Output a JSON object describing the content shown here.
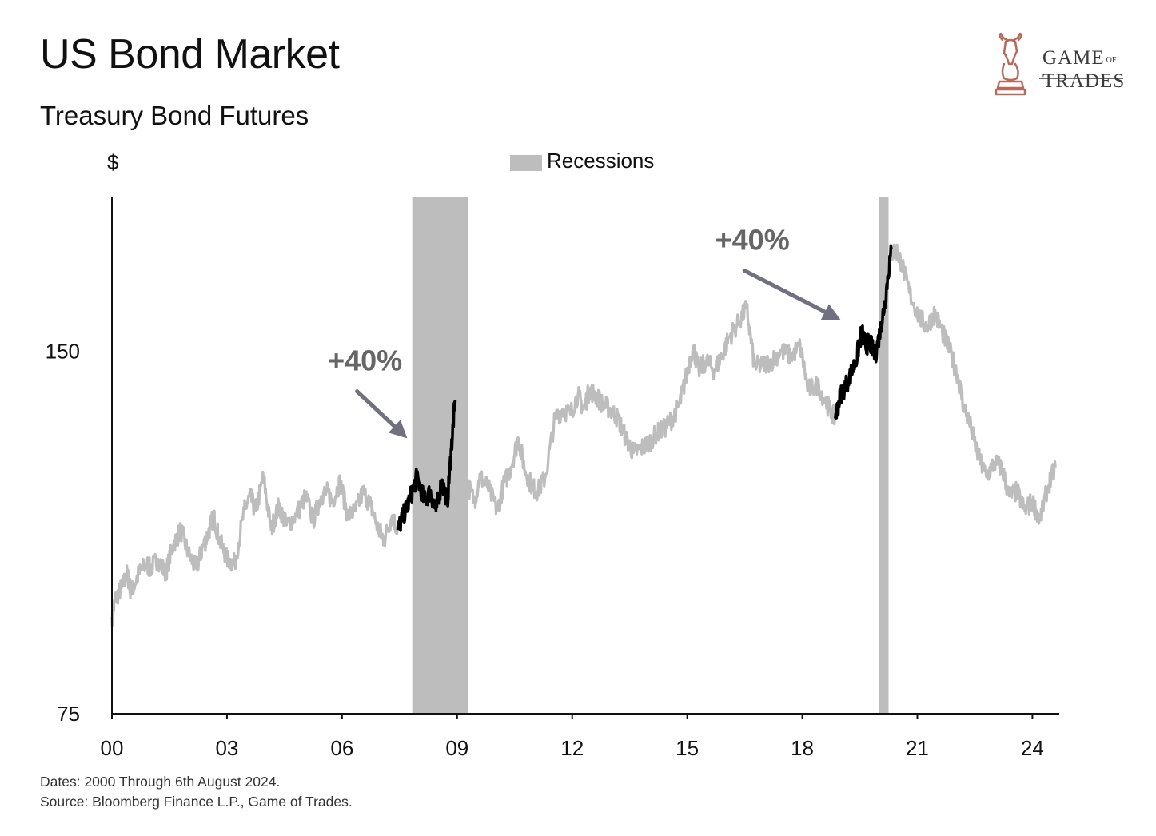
{
  "header": {
    "title": "US Bond Market",
    "subtitle": "Treasury Bond Futures"
  },
  "logo": {
    "line1": "GAME",
    "of": "OF",
    "line2": "TRADES",
    "icon": "bull-knight-chess-piece-icon"
  },
  "colors": {
    "series_normal": "#bdbdbd",
    "series_highlight": "#000000",
    "recession": "#bdbdbd",
    "annotation": "#666666",
    "logo_accent": "#b86a5a"
  },
  "footer": {
    "dates": "Dates: 2000 Through 6th August 2024.",
    "source": "Source: Bloomberg Finance L.P., Game of Trades."
  },
  "chart_data": {
    "type": "line",
    "title": "US Bond Market",
    "subtitle": "Treasury Bond Futures",
    "ylabel": "$",
    "xlim": [
      2000,
      2024.7
    ],
    "ylim": [
      75,
      182
    ],
    "yticks": [
      {
        "value": 75,
        "label": "75"
      },
      {
        "value": 150,
        "label": "150"
      }
    ],
    "xticks": [
      {
        "value": 2000,
        "label": "00"
      },
      {
        "value": 2003,
        "label": "03"
      },
      {
        "value": 2006,
        "label": "06"
      },
      {
        "value": 2009,
        "label": "09"
      },
      {
        "value": 2012,
        "label": "12"
      },
      {
        "value": 2015,
        "label": "15"
      },
      {
        "value": 2018,
        "label": "18"
      },
      {
        "value": 2021,
        "label": "21"
      },
      {
        "value": 2024,
        "label": "24"
      }
    ],
    "grid": false,
    "legend": {
      "placement": "top-center",
      "entries": [
        {
          "label": "Recessions"
        }
      ]
    },
    "recessions": [
      {
        "start": 2007.83,
        "end": 2009.29
      },
      {
        "start": 2020.0,
        "end": 2020.25
      }
    ],
    "highlights": [
      {
        "start": 2007.45,
        "end": 2008.95
      },
      {
        "start": 2018.85,
        "end": 2020.33
      }
    ],
    "annotations": [
      {
        "text": "+40%",
        "x": 2006.6,
        "y": 146
      },
      {
        "text": "+40%",
        "x": 2016.7,
        "y": 171
      }
    ],
    "series": [
      {
        "points": [
          [
            2000.0,
            95
          ],
          [
            2000.1,
            99
          ],
          [
            2000.25,
            101
          ],
          [
            2000.4,
            104
          ],
          [
            2000.5,
            100
          ],
          [
            2000.7,
            104
          ],
          [
            2000.9,
            106
          ],
          [
            2001.0,
            105
          ],
          [
            2001.2,
            107
          ],
          [
            2001.4,
            104
          ],
          [
            2001.6,
            110
          ],
          [
            2001.8,
            113
          ],
          [
            2002.0,
            108
          ],
          [
            2002.2,
            105
          ],
          [
            2002.35,
            109
          ],
          [
            2002.5,
            112
          ],
          [
            2002.65,
            116
          ],
          [
            2002.8,
            111
          ],
          [
            2003.0,
            107
          ],
          [
            2003.2,
            106
          ],
          [
            2003.45,
            117
          ],
          [
            2003.6,
            120
          ],
          [
            2003.75,
            117
          ],
          [
            2003.95,
            124
          ],
          [
            2004.15,
            113
          ],
          [
            2004.35,
            118
          ],
          [
            2004.55,
            114
          ],
          [
            2004.8,
            116
          ],
          [
            2005.05,
            120
          ],
          [
            2005.25,
            115
          ],
          [
            2005.45,
            120
          ],
          [
            2005.6,
            121
          ],
          [
            2005.75,
            119
          ],
          [
            2005.95,
            123
          ],
          [
            2006.15,
            116
          ],
          [
            2006.35,
            117
          ],
          [
            2006.55,
            121
          ],
          [
            2006.75,
            118
          ],
          [
            2006.95,
            113
          ],
          [
            2007.1,
            111
          ],
          [
            2007.3,
            116
          ],
          [
            2007.45,
            113
          ],
          [
            2007.6,
            116
          ],
          [
            2007.75,
            119
          ],
          [
            2007.95,
            124
          ],
          [
            2008.15,
            119
          ],
          [
            2008.3,
            121
          ],
          [
            2008.45,
            117
          ],
          [
            2008.6,
            123
          ],
          [
            2008.75,
            119
          ],
          [
            2008.85,
            130
          ],
          [
            2008.95,
            140
          ],
          [
            2009.1,
            130
          ],
          [
            2009.25,
            123
          ],
          [
            2009.45,
            119
          ],
          [
            2009.6,
            124
          ],
          [
            2009.8,
            122
          ],
          [
            2010.05,
            117
          ],
          [
            2010.2,
            122
          ],
          [
            2010.4,
            126
          ],
          [
            2010.6,
            132
          ],
          [
            2010.75,
            126
          ],
          [
            2010.95,
            122
          ],
          [
            2011.1,
            121
          ],
          [
            2011.3,
            124
          ],
          [
            2011.55,
            136
          ],
          [
            2011.75,
            138
          ],
          [
            2011.95,
            137
          ],
          [
            2012.15,
            141
          ],
          [
            2012.3,
            138
          ],
          [
            2012.45,
            142
          ],
          [
            2012.6,
            141
          ],
          [
            2012.8,
            139
          ],
          [
            2013.0,
            138
          ],
          [
            2013.2,
            136
          ],
          [
            2013.4,
            132
          ],
          [
            2013.6,
            129
          ],
          [
            2013.8,
            130
          ],
          [
            2014.0,
            131
          ],
          [
            2014.2,
            133
          ],
          [
            2014.4,
            134
          ],
          [
            2014.6,
            136
          ],
          [
            2014.8,
            139
          ],
          [
            2014.95,
            144
          ],
          [
            2015.15,
            151
          ],
          [
            2015.3,
            146
          ],
          [
            2015.5,
            148
          ],
          [
            2015.7,
            146
          ],
          [
            2015.9,
            149
          ],
          [
            2016.1,
            153
          ],
          [
            2016.35,
            156
          ],
          [
            2016.55,
            159
          ],
          [
            2016.75,
            147
          ],
          [
            2016.95,
            147
          ],
          [
            2017.2,
            148
          ],
          [
            2017.45,
            150
          ],
          [
            2017.7,
            149
          ],
          [
            2017.95,
            151
          ],
          [
            2018.15,
            142
          ],
          [
            2018.4,
            143
          ],
          [
            2018.65,
            139
          ],
          [
            2018.85,
            136
          ],
          [
            2019.0,
            141
          ],
          [
            2019.2,
            144
          ],
          [
            2019.4,
            148
          ],
          [
            2019.55,
            154
          ],
          [
            2019.65,
            151
          ],
          [
            2019.75,
            152
          ],
          [
            2019.9,
            149
          ],
          [
            2020.05,
            155
          ],
          [
            2020.15,
            160
          ],
          [
            2020.3,
            170
          ],
          [
            2020.45,
            171
          ],
          [
            2020.6,
            168
          ],
          [
            2020.8,
            162
          ],
          [
            2021.05,
            157
          ],
          [
            2021.25,
            155
          ],
          [
            2021.45,
            158
          ],
          [
            2021.65,
            154
          ],
          [
            2021.85,
            150
          ],
          [
            2022.05,
            145
          ],
          [
            2022.2,
            139
          ],
          [
            2022.4,
            134
          ],
          [
            2022.6,
            128
          ],
          [
            2022.8,
            124
          ],
          [
            2023.0,
            127
          ],
          [
            2023.2,
            126
          ],
          [
            2023.4,
            120
          ],
          [
            2023.6,
            121
          ],
          [
            2023.8,
            117
          ],
          [
            2024.0,
            119
          ],
          [
            2024.2,
            115
          ],
          [
            2024.4,
            122
          ],
          [
            2024.6,
            126
          ]
        ]
      }
    ]
  }
}
